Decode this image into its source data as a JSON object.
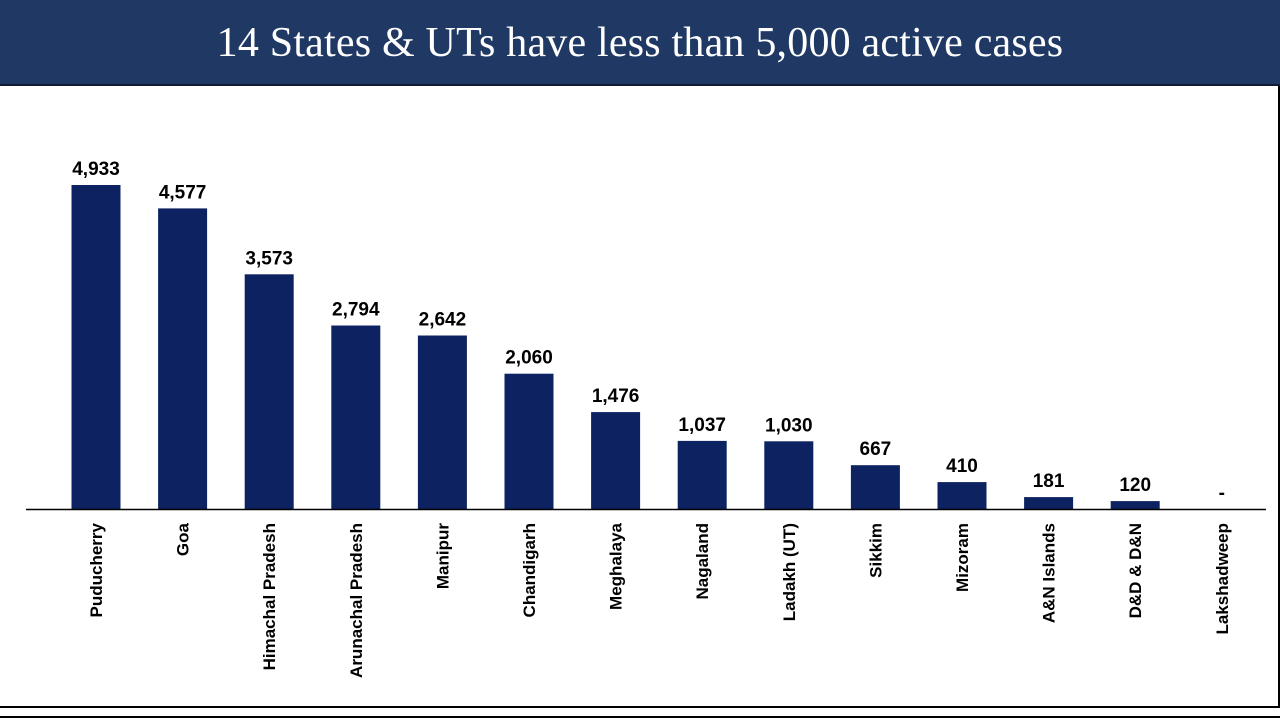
{
  "header": {
    "title": "14 States & UTs have less than 5,000 active cases"
  },
  "colors": {
    "header_bg": "#1f3864",
    "bar": "#0d2261",
    "axis": "#000000"
  },
  "chart_data": {
    "type": "bar",
    "categories": [
      "Puducherry",
      "Goa",
      "Himachal Pradesh",
      "Arunachal Pradesh",
      "Manipur",
      "Chandigarh",
      "Meghalaya",
      "Nagaland",
      "Ladakh (UT)",
      "Sikkim",
      "Mizoram",
      "A&N Islands",
      "D&D & D&N",
      "Lakshadweep"
    ],
    "values": [
      4933,
      4577,
      3573,
      2794,
      2642,
      2060,
      1476,
      1037,
      1030,
      667,
      410,
      181,
      120,
      0
    ],
    "data_labels": [
      "4,933",
      "4,577",
      "3,573",
      "2,794",
      "2,642",
      "2,060",
      "1,476",
      "1,037",
      "1,030",
      "667",
      "410",
      "181",
      "120",
      "-"
    ],
    "ylim": [
      0,
      5000
    ],
    "grid": false,
    "legend": "none"
  }
}
